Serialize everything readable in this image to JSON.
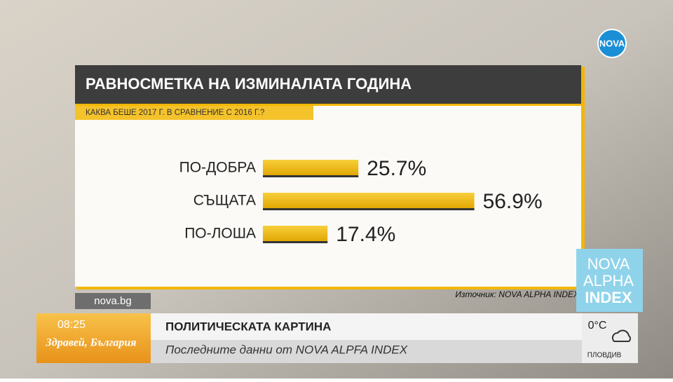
{
  "chart_data": {
    "type": "bar",
    "orientation": "horizontal",
    "title": "РАВНОСМЕТКА НА ИЗМИНАЛАТА ГОДИНА",
    "subtitle": "КАКВА БЕШЕ 2017 Г. В СРАВНЕНИЕ С 2016 Г.?",
    "categories": [
      "ПО-ДОБРА",
      "СЪЩАТА",
      "ПО-ЛОША"
    ],
    "values": [
      25.7,
      56.9,
      17.4
    ],
    "value_labels": [
      "25.7%",
      "56.9%",
      "17.4%"
    ],
    "color": "#f2b705",
    "source": "Източник: NOVA ALPHA INDEX"
  },
  "overlay": {
    "logo": "NOVA",
    "badge": [
      "NOVA",
      "ALPHA",
      "INDEX"
    ],
    "site": "nova.bg",
    "time": "08:25",
    "show": "Здравей, България",
    "headline": "ПОЛИТИЧЕСКАТА КАРТИНА",
    "subline": "Последните данни от NOVA ALPFA INDEX",
    "temperature": "0°C",
    "city": "ПЛОВДИВ"
  }
}
